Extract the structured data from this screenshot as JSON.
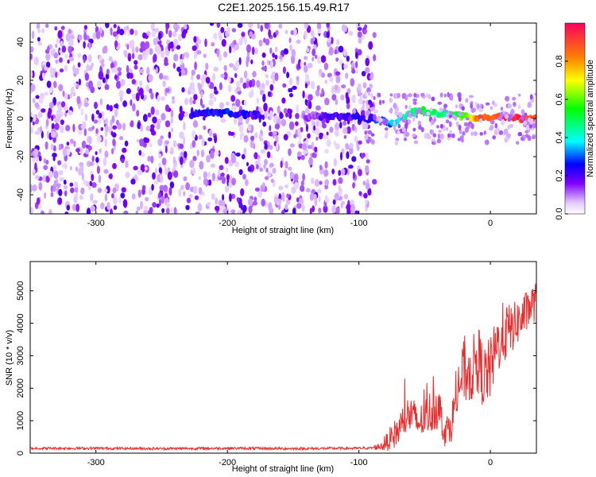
{
  "title": "C2E1.2025.156.15.49.R17",
  "chart_data": [
    {
      "type": "heatmap",
      "title": "C2E1.2025.156.15.49.R17",
      "xlabel": "Height of straight line (km)",
      "ylabel": "Frequency (Hz)",
      "xlim": [
        -350,
        35
      ],
      "ylim": [
        -50,
        50
      ],
      "xticks": [
        -300,
        -200,
        -100,
        0
      ],
      "xtick_labels": [
        "-300",
        "-200",
        "-100",
        "0"
      ],
      "yticks": [
        -40,
        -20,
        0,
        20,
        40
      ],
      "ytick_labels": [
        "-40",
        "-20",
        "0",
        "20",
        "40"
      ],
      "noise_x_range": [
        -350,
        -88
      ],
      "trace_x": [
        -225,
        -200,
        -180,
        -140,
        -110,
        -90,
        -75,
        -60,
        -50,
        -40,
        -30,
        -20,
        -10,
        0,
        10,
        20,
        35
      ],
      "trace_freq": [
        3,
        3,
        2,
        1,
        1,
        0,
        -3,
        3,
        4,
        3,
        2,
        1,
        0,
        0,
        1,
        0,
        0
      ],
      "trace_amp": [
        0.25,
        0.25,
        0.2,
        0.15,
        0.2,
        0.22,
        0.35,
        0.45,
        0.5,
        0.45,
        0.5,
        0.6,
        0.85,
        0.9,
        0.9,
        0.92,
        0.9
      ],
      "colorbar": {
        "label": "Normalized spectral amplitude",
        "range": [
          0,
          1
        ],
        "ticks": [
          0,
          0.2,
          0.4,
          0.6,
          0.8
        ],
        "tick_labels": [
          "0.0",
          "0.2",
          "0.4",
          "0.6",
          "0.8"
        ]
      }
    },
    {
      "type": "line",
      "xlabel": "Height of straight line (km)",
      "ylabel": "SNR (10 * v/v)",
      "xlim": [
        -350,
        35
      ],
      "ylim": [
        0,
        5900
      ],
      "xticks": [
        -300,
        -200,
        -100,
        0
      ],
      "xtick_labels": [
        "-300",
        "-200",
        "-100",
        "0"
      ],
      "yticks": [
        0,
        1000,
        2000,
        3000,
        4000,
        5000
      ],
      "ytick_labels": [
        "0",
        "1000",
        "2000",
        "3000",
        "4000",
        "5000"
      ],
      "series": [
        {
          "name": "SNR",
          "color": "#ee2a2a",
          "x": [
            -350,
            -300,
            -250,
            -200,
            -150,
            -100,
            -90,
            -85,
            -80,
            -75,
            -70,
            -65,
            -60,
            -55,
            -50,
            -45,
            -40,
            -35,
            -30,
            -25,
            -20,
            -15,
            -10,
            -5,
            0,
            5,
            10,
            15,
            20,
            25,
            30,
            35
          ],
          "y": [
            150,
            150,
            140,
            150,
            140,
            150,
            160,
            200,
            300,
            500,
            700,
            1100,
            1200,
            900,
            1100,
            1300,
            1500,
            700,
            800,
            2000,
            2500,
            2400,
            3000,
            2300,
            2600,
            3300,
            3700,
            3800,
            4000,
            4200,
            4500,
            4700
          ],
          "noise": [
            40,
            40,
            40,
            40,
            40,
            40,
            40,
            120,
            250,
            400,
            500,
            600,
            650,
            500,
            600,
            700,
            800,
            500,
            500,
            900,
            1000,
            900,
            1100,
            1000,
            1000,
            900,
            1000,
            800,
            700,
            700,
            600,
            600
          ]
        }
      ]
    }
  ]
}
